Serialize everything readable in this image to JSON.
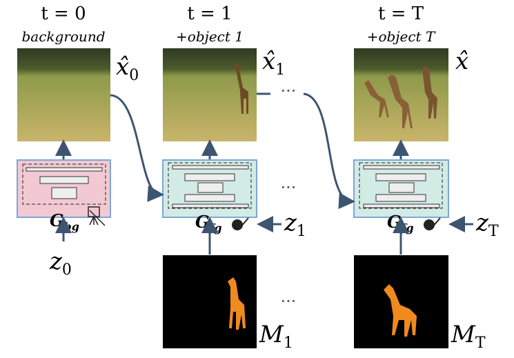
{
  "columns": [
    {
      "time": "t = 0",
      "caption": "background",
      "output": {
        "base": "x̂",
        "sub": "0"
      },
      "generator": {
        "base": "G",
        "sub": "bg"
      },
      "noise": {
        "base": "z",
        "sub": "0"
      }
    },
    {
      "time": "t = 1",
      "caption": "+object 1",
      "output": {
        "base": "x̂",
        "sub": "1"
      },
      "generator": {
        "base": "G",
        "sub": "fg"
      },
      "noise": {
        "base": "z",
        "sub": "1"
      },
      "mask": {
        "base": "M",
        "sub": "1"
      }
    },
    {
      "time": "t = T",
      "caption": "+object T",
      "output": {
        "base": "x̂"
      },
      "generator": {
        "base": "G",
        "sub": "fg"
      },
      "noise": {
        "base": "z",
        "sub": "T"
      },
      "mask": {
        "base": "M",
        "sub": "T"
      }
    }
  ],
  "ellipses": [
    "···",
    "···",
    "···"
  ]
}
